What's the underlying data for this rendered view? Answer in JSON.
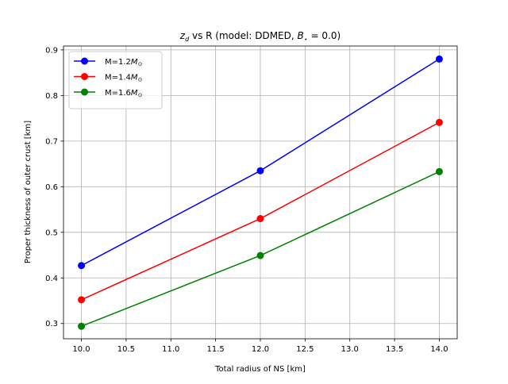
{
  "chart_data": {
    "type": "line",
    "title_parts": [
      "z",
      "d",
      " vs R (model: DDMED, ",
      "B",
      "⋆",
      " = 0.0)"
    ],
    "xlabel": "Total radius of NS [km]",
    "ylabel": "Proper thickness of outer crust [km]",
    "x": [
      10.0,
      12.0,
      14.0
    ],
    "xlim": [
      9.8,
      14.2
    ],
    "ylim": [
      0.2665,
      0.9085
    ],
    "xticks": [
      10.0,
      10.5,
      11.0,
      11.5,
      12.0,
      12.5,
      13.0,
      13.5,
      14.0
    ],
    "xtick_labels": [
      "10.0",
      "10.5",
      "11.0",
      "11.5",
      "12.0",
      "12.5",
      "13.0",
      "13.5",
      "14.0"
    ],
    "yticks": [
      0.3,
      0.4,
      0.5,
      0.6,
      0.7,
      0.8,
      0.9
    ],
    "ytick_labels": [
      "0.3",
      "0.4",
      "0.5",
      "0.6",
      "0.7",
      "0.8",
      "0.9"
    ],
    "grid": true,
    "legend_position": "top-left",
    "series": [
      {
        "name_prefix": "M=1.2",
        "name_symbol": "M",
        "name_sub": "⊙",
        "color": "#0000ff",
        "values": [
          0.427,
          0.635,
          0.88
        ]
      },
      {
        "name_prefix": "M=1.4",
        "name_symbol": "M",
        "name_sub": "⊙",
        "color": "#ff0000",
        "values": [
          0.352,
          0.53,
          0.741
        ]
      },
      {
        "name_prefix": "M=1.6",
        "name_symbol": "M",
        "name_sub": "⊙",
        "color": "#008000",
        "values": [
          0.294,
          0.449,
          0.633
        ]
      }
    ]
  }
}
